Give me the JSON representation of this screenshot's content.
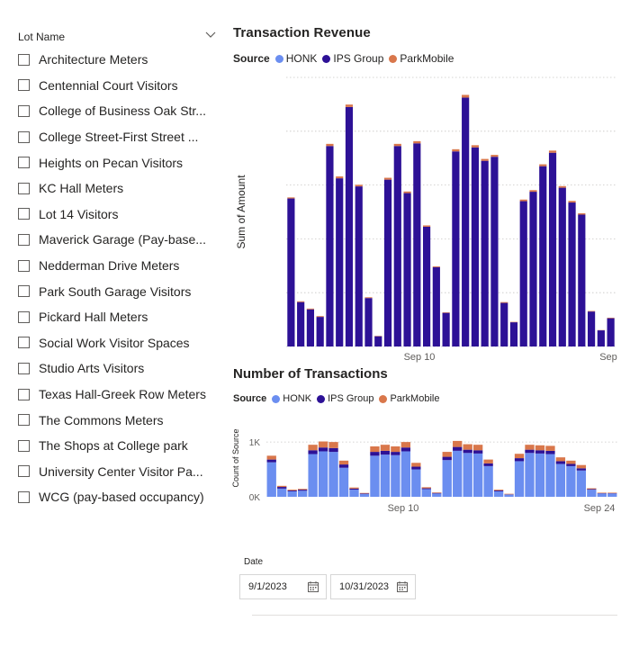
{
  "slicer": {
    "title": "Lot Name",
    "items": [
      "Architecture Meters",
      "Centennial Court Visitors",
      "College of Business Oak Str...",
      "College Street-First Street ...",
      "Heights on Pecan Visitors",
      "KC Hall Meters",
      "Lot 14 Visitors",
      "Maverick Garage (Pay-base...",
      "Nedderman Drive Meters",
      "Park South Garage Visitors",
      "Pickard Hall Meters",
      "Social Work Visitor Spaces",
      "Studio Arts Visitors",
      "Texas Hall-Greek Row Meters",
      "The Commons Meters",
      "The Shops at College park",
      "University Center Visitor Pa...",
      "WCG (pay-based occupancy)"
    ]
  },
  "colors": {
    "honk": "#6b8ef0",
    "ips": "#2d1196",
    "parkmobile": "#d9774b",
    "grid": "#c8c6c4"
  },
  "legend_title": "Source",
  "series_names": [
    "HONK",
    "IPS Group",
    "ParkMobile"
  ],
  "date_slicer": {
    "label": "Date",
    "start": "9/1/2023",
    "end": "10/31/2023"
  },
  "chart_data": [
    {
      "type": "bar",
      "stacked": true,
      "title": "Transaction Revenue",
      "ylabel": "Sum of Amount",
      "xlabel": "",
      "x_tick_labels": [
        "Sep 10",
        "Sep"
      ],
      "grid": true,
      "series": [
        {
          "name": "HONK",
          "values": [
            0,
            0,
            0,
            0,
            0,
            0,
            0,
            0,
            0,
            0,
            0,
            0,
            0,
            0,
            0,
            0,
            0,
            0,
            0,
            0,
            0,
            0,
            0,
            0,
            0,
            0,
            0,
            0,
            0,
            0,
            0,
            0,
            0,
            0
          ]
        },
        {
          "name": "IPS Group",
          "values": [
            5500,
            1650,
            1380,
            1100,
            7450,
            6250,
            8900,
            5950,
            1800,
            380,
            6200,
            7450,
            5700,
            7550,
            4450,
            2950,
            1250,
            7250,
            9250,
            7400,
            6900,
            7050,
            1620,
            900,
            5400,
            5750,
            6700,
            7200,
            5900,
            5350,
            4900,
            1300,
            600,
            1050
          ]
        },
        {
          "name": "ParkMobile",
          "values": [
            40,
            30,
            30,
            30,
            80,
            70,
            90,
            60,
            30,
            15,
            70,
            80,
            60,
            80,
            50,
            30,
            20,
            80,
            100,
            80,
            70,
            70,
            30,
            15,
            60,
            60,
            70,
            80,
            60,
            60,
            50,
            20,
            10,
            20
          ]
        }
      ]
    },
    {
      "type": "bar",
      "stacked": true,
      "title": "Number of Transactions",
      "ylabel": "Count of Source",
      "xlabel": "",
      "y_tick_labels": [
        "0K",
        "1K"
      ],
      "x_tick_labels": [
        "Sep 10",
        "Sep 24"
      ],
      "series": [
        {
          "name": "HONK",
          "values": [
            630,
            150,
            100,
            110,
            780,
            830,
            820,
            530,
            130,
            50,
            750,
            770,
            760,
            830,
            500,
            140,
            60,
            670,
            840,
            800,
            790,
            560,
            100,
            40,
            650,
            800,
            790,
            780,
            600,
            560,
            480,
            130,
            60,
            60
          ]
        },
        {
          "name": "IPS Group",
          "values": [
            50,
            30,
            15,
            20,
            70,
            70,
            70,
            60,
            20,
            10,
            70,
            70,
            60,
            70,
            50,
            15,
            10,
            60,
            70,
            60,
            60,
            50,
            15,
            5,
            55,
            60,
            60,
            60,
            50,
            40,
            40,
            10,
            5,
            5
          ]
        },
        {
          "name": "ParkMobile",
          "values": [
            70,
            20,
            15,
            15,
            100,
            110,
            110,
            70,
            20,
            10,
            100,
            110,
            100,
            100,
            70,
            20,
            10,
            90,
            110,
            100,
            100,
            70,
            15,
            10,
            80,
            90,
            90,
            90,
            70,
            60,
            60,
            15,
            10,
            10
          ]
        }
      ]
    }
  ]
}
